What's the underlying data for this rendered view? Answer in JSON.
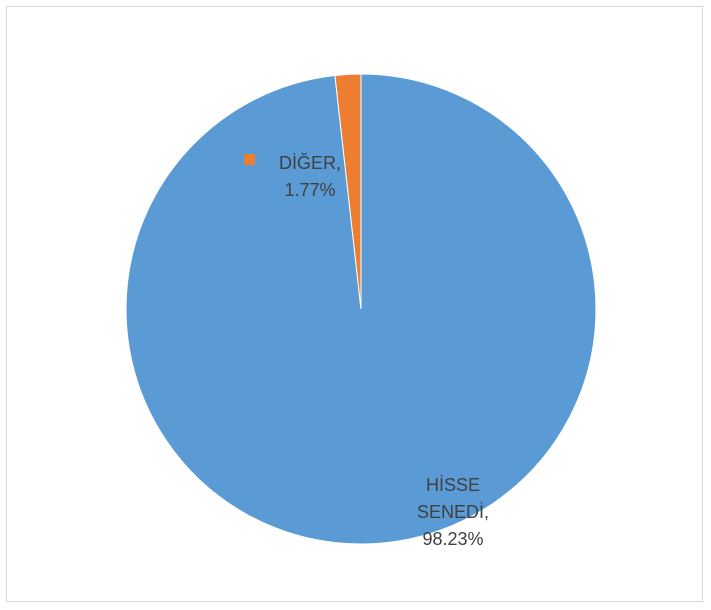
{
  "chart_data": {
    "type": "pie",
    "title": "",
    "slices": [
      {
        "name": "HİSSE SENEDİ,",
        "value": 98.23,
        "value_label": "98.23%",
        "color": "#5B9BD5",
        "label_lines": [
          "HİSSE",
          "SENEDİ,",
          "98.23%"
        ],
        "legend_key": false
      },
      {
        "name": "DİĞER,",
        "value": 1.77,
        "value_label": "1.77%",
        "color": "#ED7D31",
        "label_lines": [
          "DİĞER,",
          "1.77%"
        ],
        "legend_key": true
      }
    ],
    "start_angle_deg": 0,
    "direction": "clockwise",
    "legend": "none"
  }
}
